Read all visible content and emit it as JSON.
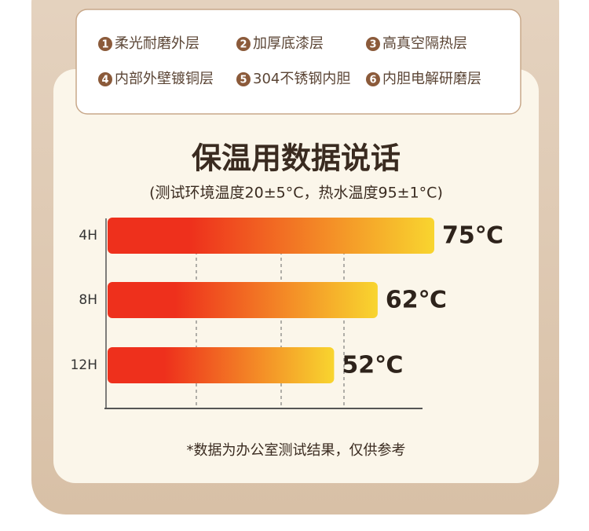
{
  "layers": [
    {
      "number": "1",
      "label": "柔光耐磨外层"
    },
    {
      "number": "2",
      "label": "加厚底漆层"
    },
    {
      "number": "3",
      "label": "高真空隔热层"
    },
    {
      "number": "4",
      "label": "内部外壁镀铜层"
    },
    {
      "number": "5",
      "label": "304不锈钢内胆"
    },
    {
      "number": "6",
      "label": "内胆电解研磨层"
    }
  ],
  "chart_data": {
    "type": "bar",
    "orientation": "horizontal",
    "title": "保温用数据说话",
    "subtitle": "(测试环境温度20±5°C，热水温度95±1°C)",
    "categories": [
      "4H",
      "8H",
      "12H"
    ],
    "values": [
      75,
      62,
      52
    ],
    "value_labels": [
      "75℃",
      "62℃",
      "52℃"
    ],
    "colors": [
      "#ee301c",
      "#f8d52f"
    ],
    "note": "*数据为办公室测试结果，仅供参考"
  }
}
